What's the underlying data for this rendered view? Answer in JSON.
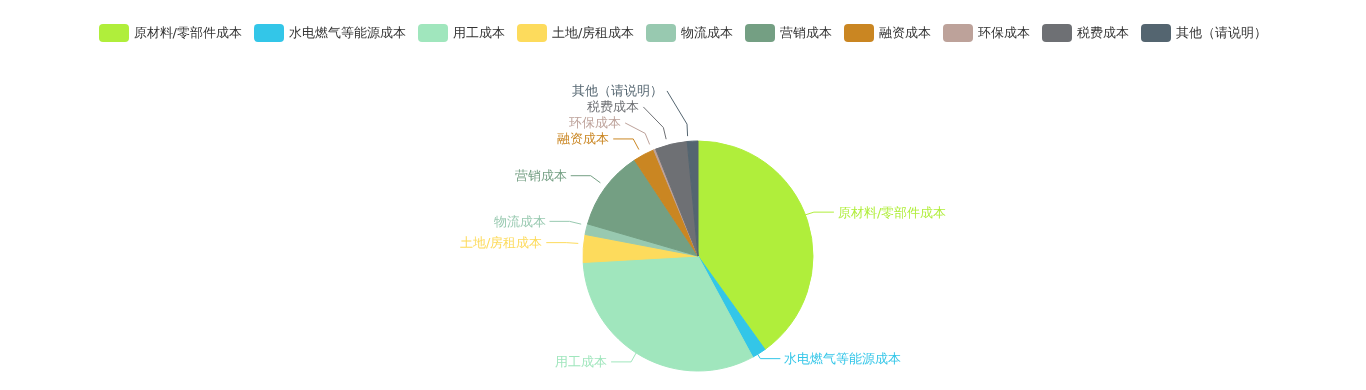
{
  "chart_data": {
    "type": "pie",
    "categories": [
      "原材料/零部件成本",
      "水电燃气等能源成本",
      "用工成本",
      "土地/房租成本",
      "物流成本",
      "营销成本",
      "融资成本",
      "环保成本",
      "税费成本",
      "其他（请说明）"
    ],
    "values": [
      40.1,
      2,
      32,
      3.9,
      1.5,
      11.2,
      3,
      0.3,
      4.5,
      1.5
    ],
    "colors": [
      "#b0ee3b",
      "#33c6e8",
      "#a0e6bd",
      "#fddb5c",
      "#98c9b0",
      "#749f83",
      "#ca8622",
      "#bda29a",
      "#6e7074",
      "#546570"
    ],
    "legend": "top"
  }
}
